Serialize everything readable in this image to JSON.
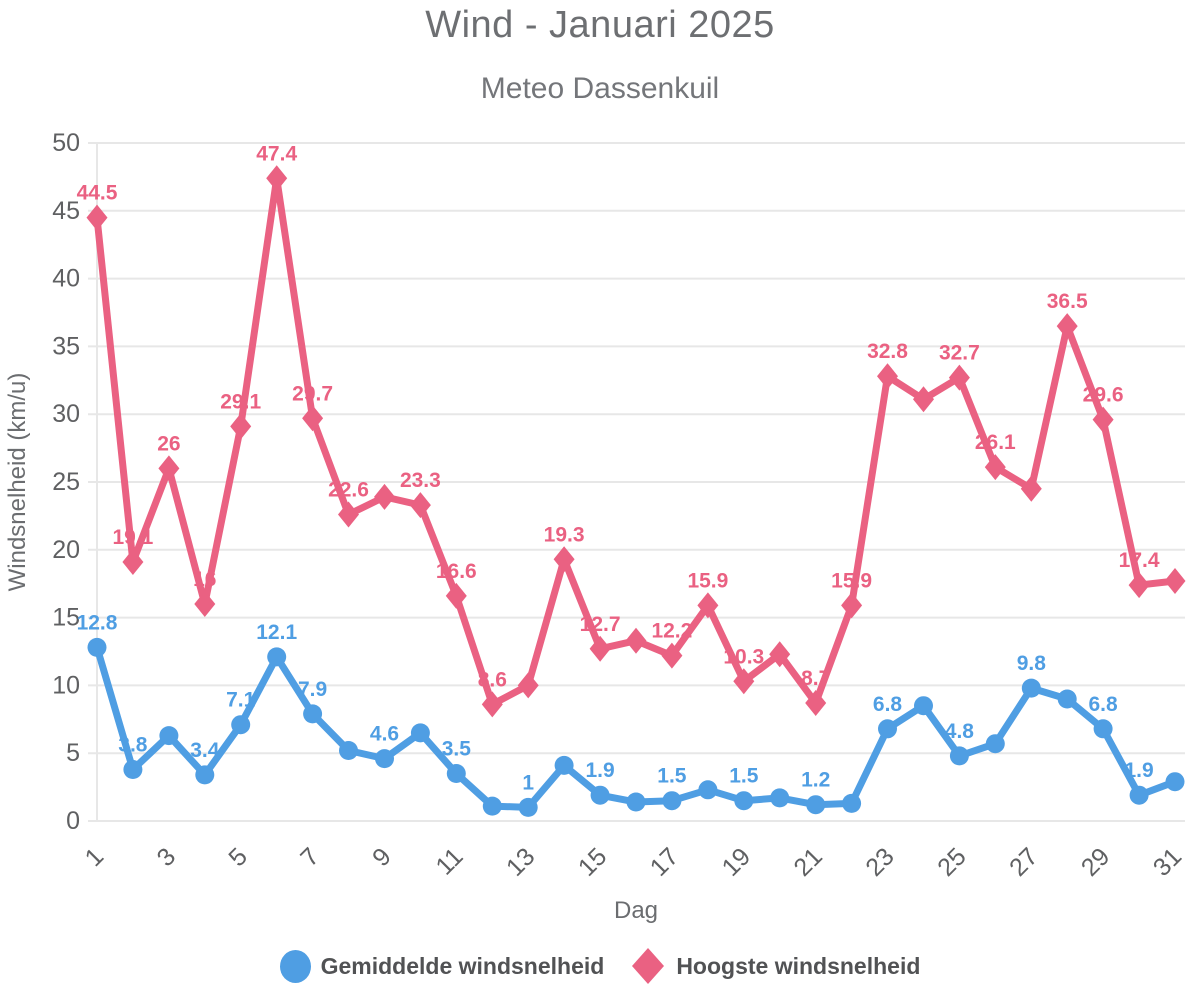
{
  "chart_data": {
    "type": "line",
    "title": "Wind - Januari 2025",
    "subtitle": "Meteo Dassenkuil",
    "xlabel": "Dag",
    "ylabel": "Windsnelheid (km/u)",
    "ylim": [
      0,
      50
    ],
    "ytick_step": 5,
    "grid": true,
    "legend_position": "bottom",
    "x": [
      1,
      2,
      3,
      4,
      5,
      6,
      7,
      8,
      9,
      10,
      11,
      12,
      13,
      14,
      15,
      16,
      17,
      18,
      19,
      20,
      21,
      22,
      23,
      24,
      25,
      26,
      27,
      28,
      29,
      30,
      31
    ],
    "xtick_labels": [
      1,
      3,
      5,
      7,
      9,
      11,
      13,
      15,
      17,
      19,
      21,
      23,
      25,
      27,
      29,
      31
    ],
    "series": [
      {
        "name": "Gemiddelde windsnelheid",
        "color": "#4F9EE3",
        "marker": "circle",
        "values": [
          12.8,
          3.8,
          6.3,
          3.4,
          7.1,
          12.1,
          7.9,
          5.2,
          4.6,
          6.5,
          3.5,
          1.1,
          1,
          4.1,
          1.9,
          1.4,
          1.5,
          2.3,
          1.5,
          1.7,
          1.2,
          1.3,
          6.8,
          8.5,
          4.8,
          5.7,
          9.8,
          9,
          6.8,
          1.9,
          2.9
        ],
        "point_labels": [
          "12.8",
          "3.8",
          null,
          "3.4",
          "7.1",
          "12.1",
          "7.9",
          null,
          "4.6",
          null,
          "3.5",
          null,
          "1",
          null,
          "1.9",
          null,
          "1.5",
          null,
          "1.5",
          null,
          "1.2",
          null,
          "6.8",
          null,
          "4.8",
          null,
          "9.8",
          null,
          "6.8",
          "1.9",
          null
        ]
      },
      {
        "name": "Hoogste windsnelheid",
        "color": "#EA6182",
        "marker": "diamond",
        "values": [
          44.5,
          19.1,
          26,
          16,
          29.1,
          47.4,
          29.7,
          22.6,
          23.9,
          23.3,
          16.6,
          8.6,
          10,
          19.3,
          12.7,
          13.3,
          12.2,
          15.9,
          10.3,
          12.3,
          8.7,
          15.9,
          32.8,
          31.1,
          32.7,
          26.1,
          24.5,
          36.5,
          29.6,
          17.4,
          17.7
        ],
        "point_labels": [
          "44.5",
          "19.1",
          "26",
          "16",
          "29.1",
          "47.4",
          "29.7",
          "22.6",
          null,
          "23.3",
          "16.6",
          "8.6",
          null,
          "19.3",
          "12.7",
          null,
          "12.2",
          "15.9",
          "10.3",
          null,
          "8.7",
          "15.9",
          "32.8",
          null,
          "32.7",
          "26.1",
          null,
          "36.5",
          "29.6",
          "17.4",
          null
        ]
      }
    ]
  },
  "theme": {
    "background": "#FFFFFF",
    "grid_color": "#E7E7E7",
    "tick_color": "#5F6062",
    "axis_title_color": "#6B6D70",
    "title_color": "#6D6F72",
    "subtitle_color": "#74767A",
    "legend_text_color": "#515254"
  }
}
